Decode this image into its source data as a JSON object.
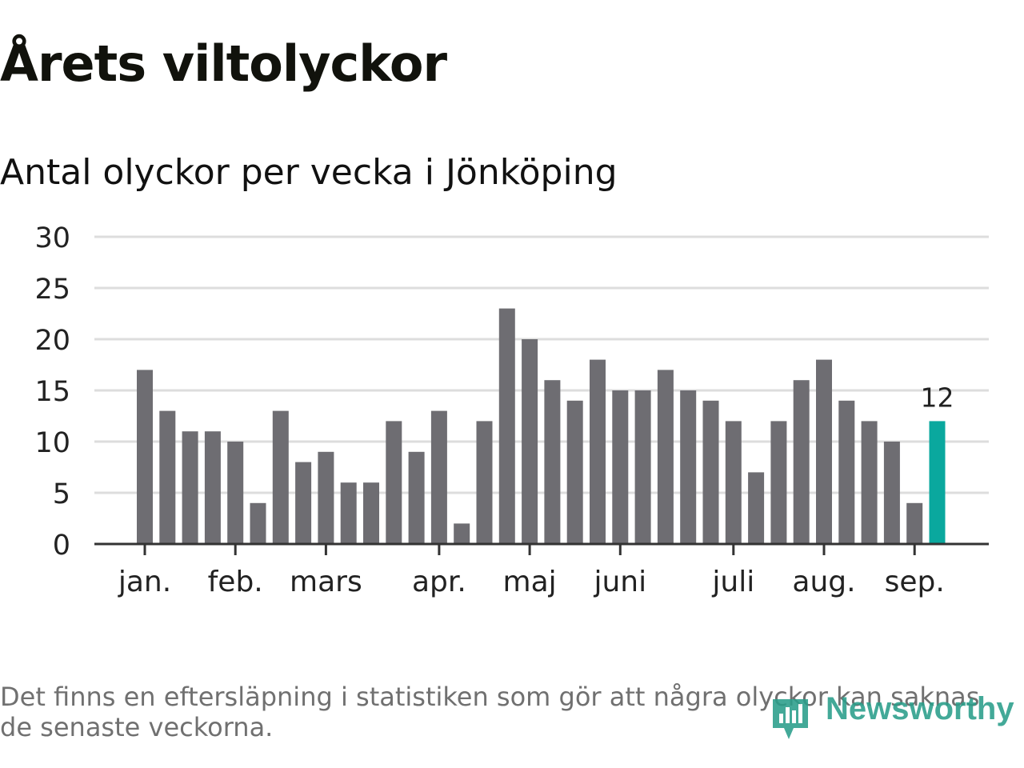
{
  "title": "Årets viltolyckor",
  "subtitle": "Antal olyckor per vecka i Jönköping",
  "footnote": "Det finns en eftersläpning i statistiken som gör att några olyckor kan saknas de senaste veckorna.",
  "brand": {
    "name": "Newsworthy",
    "icon": "newsworthy-logo-icon",
    "color": "#2a9e8a"
  },
  "colors": {
    "bar": "#6e6d72",
    "highlight": "#0aa89e",
    "grid": "#dddddd",
    "axis": "#333333",
    "text": "#222222"
  },
  "chart_data": {
    "type": "bar",
    "xlabel": "",
    "ylabel": "",
    "ylim": [
      0,
      30
    ],
    "yticks": [
      0,
      5,
      10,
      15,
      20,
      25,
      30
    ],
    "grid": true,
    "month_labels": [
      {
        "label": "jan.",
        "week": 1
      },
      {
        "label": "feb.",
        "week": 5
      },
      {
        "label": "mars",
        "week": 9
      },
      {
        "label": "apr.",
        "week": 14
      },
      {
        "label": "maj",
        "week": 18
      },
      {
        "label": "juni",
        "week": 22
      },
      {
        "label": "juli",
        "week": 27
      },
      {
        "label": "aug.",
        "week": 31
      },
      {
        "label": "sep.",
        "week": 35
      }
    ],
    "weeks": [
      1,
      2,
      3,
      4,
      5,
      6,
      7,
      8,
      9,
      10,
      11,
      12,
      13,
      14,
      15,
      16,
      17,
      18,
      19,
      20,
      21,
      22,
      23,
      24,
      25,
      26,
      27,
      28,
      29,
      30,
      31,
      32,
      33,
      34,
      35,
      36
    ],
    "values": [
      17,
      13,
      11,
      11,
      10,
      4,
      13,
      8,
      9,
      6,
      6,
      12,
      9,
      13,
      2,
      12,
      23,
      20,
      16,
      14,
      18,
      15,
      15,
      17,
      15,
      14,
      12,
      7,
      12,
      16,
      18,
      14,
      12,
      10,
      4,
      12
    ],
    "highlight_index": 35,
    "highlight_label": "12"
  }
}
